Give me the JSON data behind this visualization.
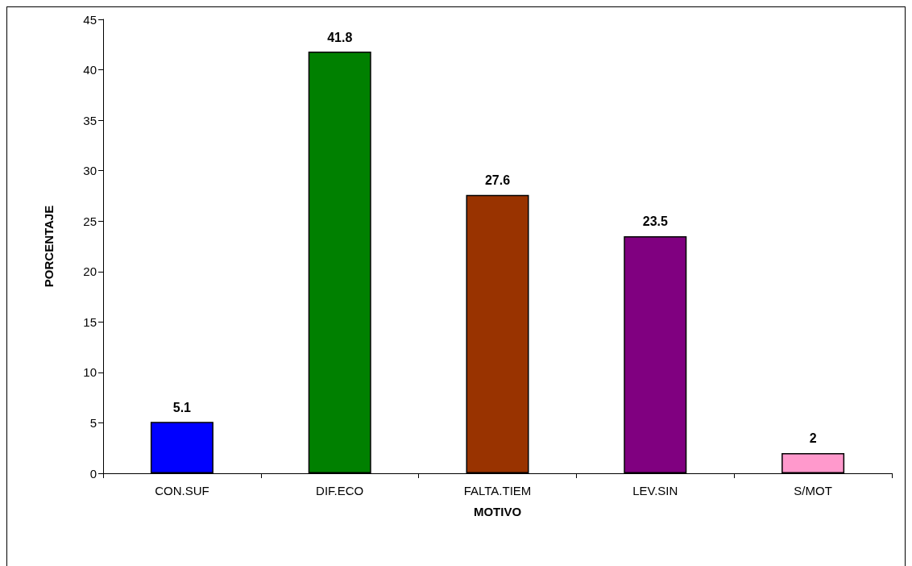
{
  "chart_data": {
    "type": "bar",
    "xlabel": "MOTIVO",
    "ylabel": "PORCENTAJE",
    "categories": [
      "CON.SUF",
      "DIF.ECO",
      "FALTA.TIEM",
      "LEV.SIN",
      "S/MOT"
    ],
    "values": [
      5.1,
      41.8,
      27.6,
      23.5,
      2
    ],
    "colors": [
      "#0000ff",
      "#008000",
      "#993300",
      "#800080",
      "#ff99cc"
    ],
    "ylim": [
      0,
      45
    ],
    "yticks": [
      0,
      5,
      10,
      15,
      20,
      25,
      30,
      35,
      40,
      45
    ],
    "data_labels": true
  }
}
